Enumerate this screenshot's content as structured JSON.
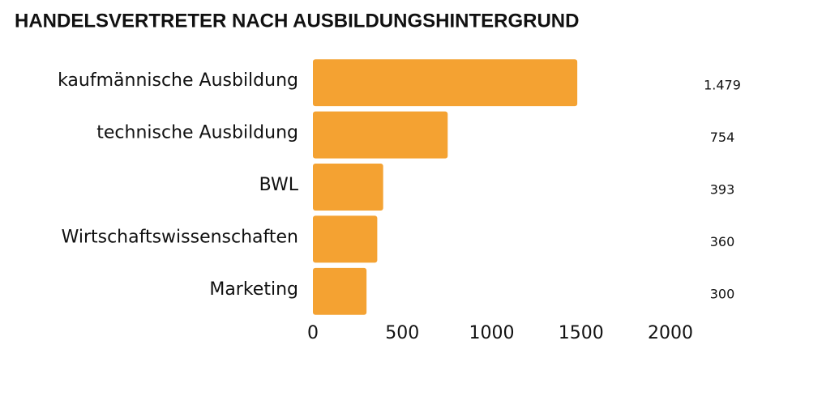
{
  "chart_data": {
    "type": "barh",
    "title": "HANDELSVERTRETER NACH AUSBILDUNGSHINTERGRUND",
    "categories": [
      "kaufmännische Ausbildung",
      "technische Ausbildung",
      "BWL",
      "Wirtschaftswissenschaften",
      "Marketing"
    ],
    "values": [
      1479,
      754,
      393,
      360,
      300
    ],
    "value_labels": [
      "1.479",
      "754",
      "393",
      "360",
      "300"
    ],
    "color": "#f4a232",
    "xlim": [
      0,
      2000
    ],
    "xticks": [
      0,
      500,
      1000,
      1500,
      2000
    ],
    "grid": false
  }
}
